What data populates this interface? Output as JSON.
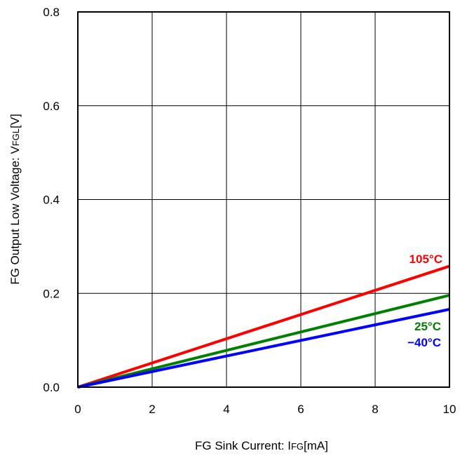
{
  "chart_data": {
    "type": "line",
    "xlabel_parts": [
      "FG Sink Current: I",
      "FG",
      "[mA]"
    ],
    "ylabel_parts": [
      "FG Output Low Voltage: V",
      "FGL",
      "[V]"
    ],
    "xlim": [
      0,
      10
    ],
    "ylim": [
      0,
      0.8
    ],
    "x_ticks": [
      "0",
      "2",
      "4",
      "6",
      "8",
      "10"
    ],
    "y_ticks": [
      "0.0",
      "0.2",
      "0.4",
      "0.6",
      "0.8"
    ],
    "grid": true,
    "series": [
      {
        "name": "105°C",
        "color": "#ff0000",
        "x": [
          0,
          10
        ],
        "y": [
          0,
          0.258
        ]
      },
      {
        "name": "25°C",
        "color": "#008000",
        "x": [
          0,
          10
        ],
        "y": [
          0,
          0.196
        ]
      },
      {
        "name": "−40°C",
        "color": "#0000ff",
        "x": [
          0,
          10
        ],
        "y": [
          0,
          0.166
        ]
      }
    ]
  }
}
